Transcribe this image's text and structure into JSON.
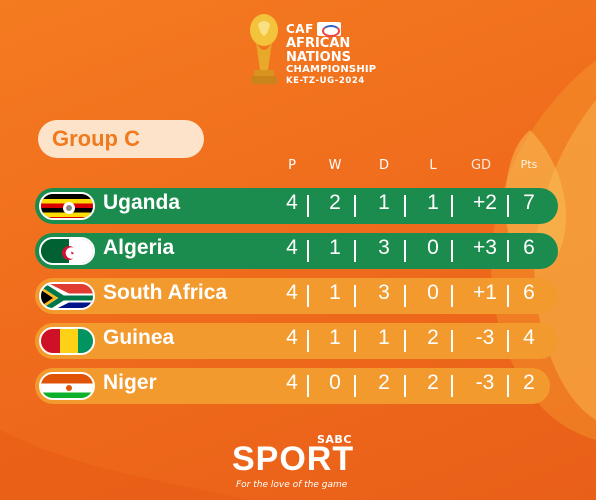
{
  "header": {
    "caf": "CAF",
    "line1": "AFRICAN",
    "line2": "NATIONS",
    "line3": "CHAMPIONSHIP",
    "line4": "KE-TZ-UG-2024"
  },
  "group": {
    "title": "Group C"
  },
  "columns": [
    "P",
    "W",
    "D",
    "L",
    "GD",
    "Pts"
  ],
  "standings": [
    {
      "team": "Uganda",
      "P": "4",
      "W": "2",
      "D": "1",
      "L": "1",
      "GD": "+2",
      "Pts": "7"
    },
    {
      "team": "Algeria",
      "P": "4",
      "W": "1",
      "D": "3",
      "L": "0",
      "GD": "+3",
      "Pts": "6"
    },
    {
      "team": "South Africa",
      "P": "4",
      "W": "1",
      "D": "3",
      "L": "0",
      "GD": "+1",
      "Pts": "6"
    },
    {
      "team": "Guinea",
      "P": "4",
      "W": "1",
      "D": "1",
      "L": "2",
      "GD": "-3",
      "Pts": "4"
    },
    {
      "team": "Niger",
      "P": "4",
      "W": "0",
      "D": "2",
      "L": "2",
      "GD": "-3",
      "Pts": "2"
    }
  ],
  "footer": {
    "brand_small": "SABC",
    "brand_big": "SPORT",
    "tagline": "For the love of the game"
  },
  "colors": {
    "background": "#f47b20",
    "qualified_row": "#1c8c4e",
    "other_row": "#f29a2e",
    "group_pill": "#fde3c9"
  }
}
